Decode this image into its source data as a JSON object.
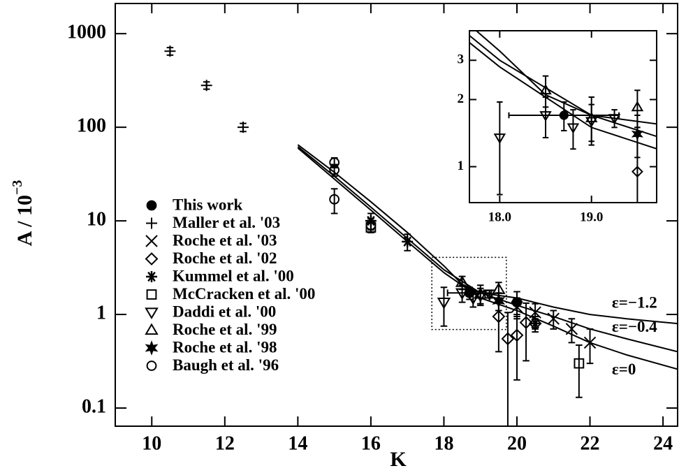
{
  "chart_data": {
    "type": "scatter",
    "xlabel": "K",
    "ylabel": "A / 10",
    "ylabel_exponent": "−3",
    "log_y": true,
    "xlim": [
      9,
      24.4
    ],
    "ylim": [
      0.064,
      2100
    ],
    "xticks": [
      10,
      12,
      14,
      16,
      18,
      20,
      22,
      24
    ],
    "yticks": [
      0.1,
      1,
      10,
      100,
      1000
    ],
    "legend": "left",
    "color": "#000000",
    "series": [
      {
        "name": "This work",
        "marker": "filled-circle",
        "x": [
          18.7,
          20.0
        ],
        "values": [
          1.7,
          1.35
        ],
        "err": [
          0.25,
          0.4
        ],
        "xerr": [
          0.6,
          0
        ]
      },
      {
        "name": "Maller et al. '03",
        "marker": "plus",
        "x": [
          10.5,
          11.5,
          12.5
        ],
        "values": [
          650,
          280,
          100
        ],
        "err": [
          60,
          25,
          10
        ]
      },
      {
        "name": "Roche et al. '03",
        "marker": "cross",
        "x": [
          20.0,
          20.5,
          21.0,
          21.5,
          22.0
        ],
        "values": [
          1.2,
          1.05,
          0.9,
          0.7,
          0.5
        ],
        "err": [
          0.3,
          0.25,
          0.2,
          0.2,
          0.2
        ]
      },
      {
        "name": "Roche et al. '02",
        "marker": "diamond",
        "x": [
          19.5,
          19.75,
          20.0,
          20.25,
          20.5
        ],
        "values": [
          0.95,
          0.55,
          0.6,
          0.82,
          0.8
        ],
        "err": [
          0.55,
          0.5,
          0.4,
          0.5,
          0.15
        ]
      },
      {
        "name": "Kummel et al. '00",
        "marker": "asterisk",
        "x": [
          16.0,
          17.0,
          20.5
        ],
        "values": [
          10,
          6,
          0.8
        ],
        "err": [
          2,
          1.2,
          0.1
        ]
      },
      {
        "name": "McCracken et al. '00",
        "marker": "square",
        "x": [
          16.0,
          21.7
        ],
        "values": [
          8.5,
          0.3
        ],
        "err": [
          1,
          0.17
        ]
      },
      {
        "name": "Daddi et al. '00",
        "marker": "triangle-down",
        "x": [
          18.0,
          18.5,
          18.8,
          19.0,
          19.25
        ],
        "values": [
          1.35,
          1.7,
          1.5,
          1.6,
          1.65
        ],
        "err": [
          0.6,
          0.35,
          0.3,
          0.3,
          0.15
        ]
      },
      {
        "name": "Roche et al. '99",
        "marker": "triangle-up",
        "x": [
          18.5,
          19.0,
          19.5
        ],
        "values": [
          2.2,
          1.65,
          1.85
        ],
        "err": [
          0.35,
          0.4,
          0.35
        ]
      },
      {
        "name": "Roche et al. '98",
        "marker": "star",
        "x": [
          19.5
        ],
        "values": [
          1.4
        ],
        "err": [
          0.3
        ]
      },
      {
        "name": "Baugh et al. '96",
        "marker": "circle",
        "x": [
          15.0,
          15.0,
          15.0,
          16.0
        ],
        "values": [
          42,
          35,
          17,
          9
        ],
        "err": [
          5,
          5,
          5,
          1.5
        ]
      }
    ],
    "lines": [
      {
        "name": "ε=−1.2",
        "x": [
          14,
          15,
          16,
          17,
          18,
          18.5,
          19,
          20,
          21,
          22,
          23,
          24.4
        ],
        "values": [
          65,
          33,
          16,
          7.5,
          3.3,
          2.1,
          1.7,
          1.5,
          1.2,
          1.0,
          0.9,
          0.8
        ]
      },
      {
        "name": "ε=−0.4",
        "x": [
          14,
          15,
          16,
          17,
          18,
          19,
          20,
          21,
          22,
          23,
          24.4
        ],
        "values": [
          62,
          30,
          14,
          6.5,
          3.0,
          1.7,
          1.25,
          0.95,
          0.7,
          0.55,
          0.4
        ]
      },
      {
        "name": "ε=0",
        "x": [
          14,
          15,
          16,
          17,
          18,
          19,
          20,
          21,
          22,
          23,
          24.4
        ],
        "values": [
          60,
          28,
          13,
          6.0,
          2.8,
          1.5,
          1.1,
          0.75,
          0.5,
          0.37,
          0.26
        ]
      }
    ],
    "inset": {
      "xlim": [
        17.67,
        19.71
      ],
      "ylim": [
        0.69,
        4.07
      ],
      "xticks": [
        {
          "value": 18,
          "label": "18.0"
        },
        {
          "value": 19,
          "label": "19.0"
        }
      ],
      "yticks": [
        1,
        2,
        3
      ]
    }
  }
}
